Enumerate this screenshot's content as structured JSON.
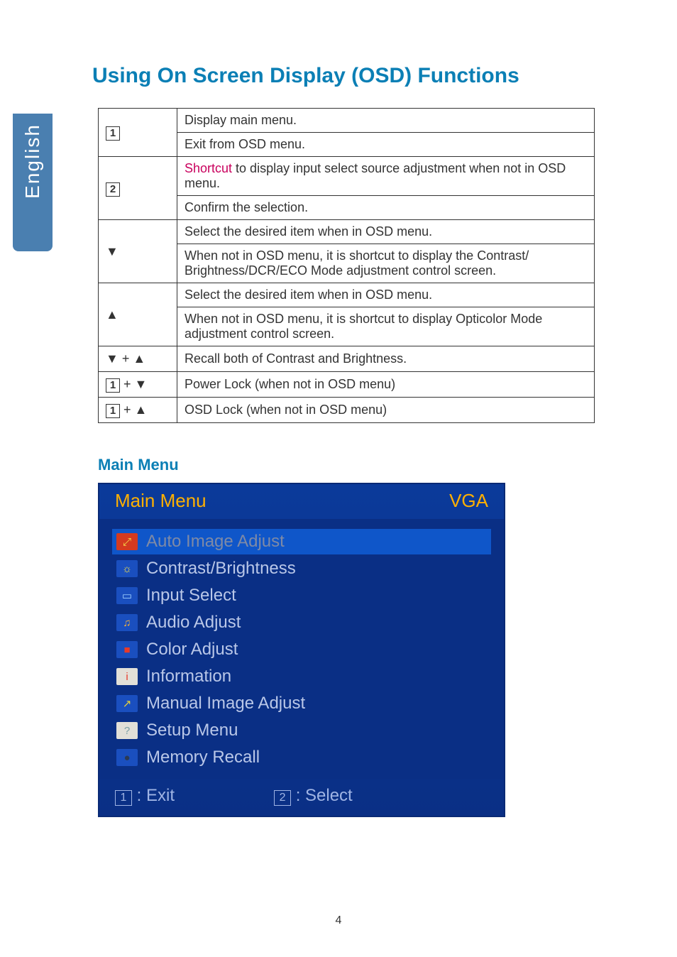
{
  "language_tab": "English",
  "page_title": "Using On Screen Display (OSD) Functions",
  "table": {
    "rows": [
      {
        "key_type": "box",
        "key_value": "1",
        "desc": "Display main menu."
      },
      {
        "key_type": "cont",
        "desc": "Exit from OSD menu."
      },
      {
        "key_type": "box",
        "key_value": "2",
        "desc_pre": "Shortcut",
        "desc": " to display input select source adjustment when not in OSD menu."
      },
      {
        "key_type": "cont",
        "desc": "Confirm the selection."
      },
      {
        "key_type": "sym",
        "key_value": "▼",
        "desc": "Select the desired item when in OSD menu."
      },
      {
        "key_type": "cont",
        "desc": "When not in OSD menu, it is shortcut to display the Contrast/ Brightness/DCR/ECO Mode adjustment control screen."
      },
      {
        "key_type": "sym",
        "key_value": "▲",
        "desc": "Select the desired item when in OSD menu."
      },
      {
        "key_type": "cont",
        "desc": "When not in OSD menu, it is shortcut to display Opticolor Mode adjustment control screen."
      },
      {
        "key_type": "sym",
        "key_value": "▼ + ▲",
        "desc": "Recall both of Contrast and Brightness."
      },
      {
        "key_type": "box_sym",
        "key_box": "1",
        "key_sym": " + ▼",
        "desc": "Power Lock (when not in OSD menu)"
      },
      {
        "key_type": "box_sym",
        "key_box": "1",
        "key_sym": " + ▲",
        "desc": "OSD Lock (when not in OSD menu)"
      }
    ]
  },
  "section_title": "Main Menu",
  "osd": {
    "header_left": "Main Menu",
    "header_right": "VGA",
    "items": [
      {
        "label": "Auto Image Adjust",
        "selected": true,
        "icon_bg": "#d43a1f",
        "icon_fg": "#f7e24a",
        "glyph": "⤢"
      },
      {
        "label": "Contrast/Brightness",
        "icon_bg": "#1a4fbf",
        "icon_fg": "#f7e24a",
        "glyph": "☼"
      },
      {
        "label": "Input Select",
        "icon_bg": "#1a4fbf",
        "icon_fg": "#9fd0ff",
        "glyph": "▭"
      },
      {
        "label": "Audio Adjust",
        "icon_bg": "#1a4fbf",
        "icon_fg": "#f7b23a",
        "glyph": "♫"
      },
      {
        "label": "Color Adjust",
        "icon_bg": "#1a4fbf",
        "icon_fg": "#e83a2a",
        "glyph": "■"
      },
      {
        "label": "Information",
        "icon_bg": "#e2e0d8",
        "icon_fg": "#e83a2a",
        "glyph": "i"
      },
      {
        "label": "Manual Image Adjust",
        "icon_bg": "#1a4fbf",
        "icon_fg": "#e8d23a",
        "glyph": "↗"
      },
      {
        "label": "Setup Menu",
        "icon_bg": "#e2e0d8",
        "icon_fg": "#7aa0a6",
        "glyph": "?"
      },
      {
        "label": "Memory Recall",
        "icon_bg": "#1a4fbf",
        "icon_fg": "#2b3a55",
        "glyph": "●"
      }
    ],
    "footer": {
      "exit_num": "1",
      "exit_label": ": Exit",
      "select_num": "2",
      "select_label": ": Select"
    }
  },
  "page_number": "4"
}
